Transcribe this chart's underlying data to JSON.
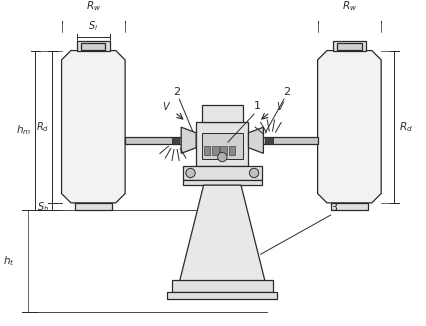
{
  "bg_color": "#ffffff",
  "line_color": "#2a2a2a",
  "fig_width": 4.26,
  "fig_height": 3.26,
  "dpi": 100
}
